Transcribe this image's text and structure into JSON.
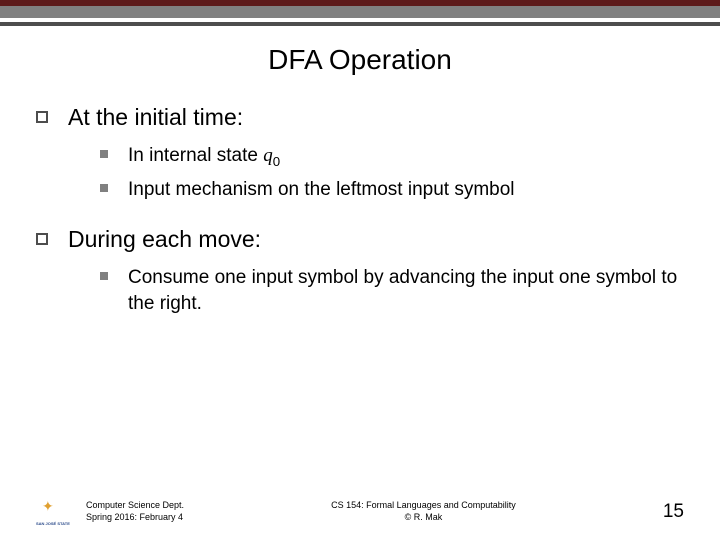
{
  "title": "DFA Operation",
  "items": [
    {
      "text": "At the initial time:",
      "children": [
        {
          "html": "In internal state <span class='italic-var'>q</span><span class='sub'>0</span>"
        },
        {
          "text": "Input mechanism on the leftmost input symbol"
        }
      ]
    },
    {
      "text": "During each move:",
      "children": [
        {
          "text": "Consume one input symbol by advancing the input one symbol to the right."
        }
      ]
    }
  ],
  "footer": {
    "logo_name": "SAN JOSÉ STATE",
    "left_line1": "Computer Science Dept.",
    "left_line2": "Spring 2016: February 4",
    "center_line1": "CS 154: Formal Languages and Computability",
    "center_line2": "© R. Mak",
    "page": "15"
  },
  "colors": {
    "bar_red": "#5d1a1a",
    "bar_gray1": "#808080",
    "bar_gray2": "#4d4d4d",
    "bullet1_border": "#4d4d4d",
    "bullet2_fill": "#808080",
    "bg": "#ffffff",
    "text": "#000000"
  }
}
